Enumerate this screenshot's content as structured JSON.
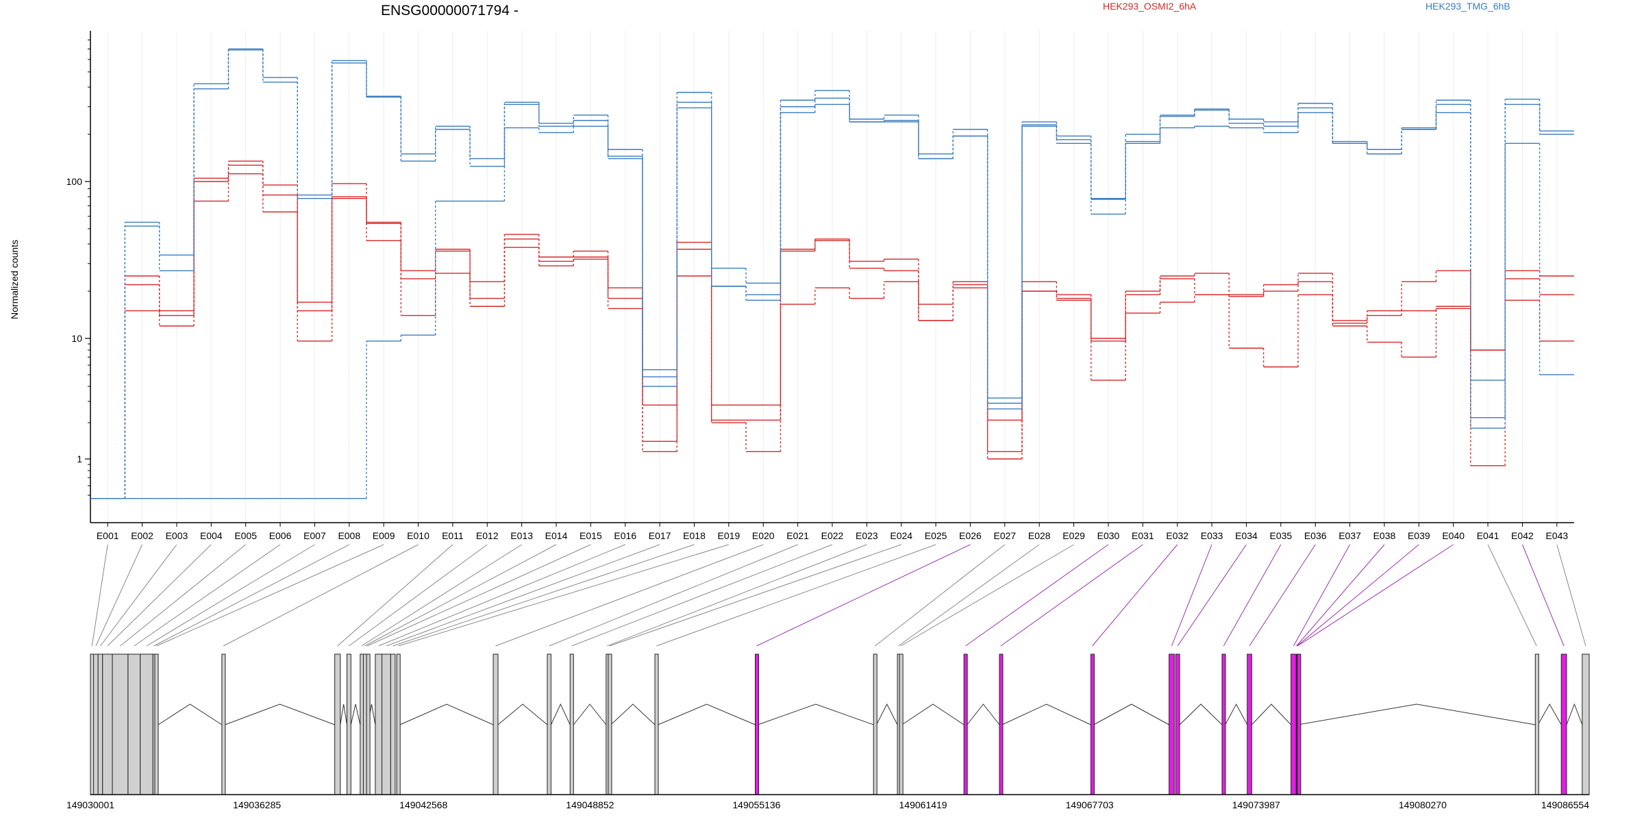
{
  "chart_data": {
    "type": "line",
    "title": "ENSG00000071794 -",
    "ylabel": "Normalized counts",
    "yscale": "log",
    "ylim": [
      0.4,
      900
    ],
    "y_ticks": [
      "1",
      "10",
      "100"
    ],
    "y_tick_values": [
      1,
      10,
      100
    ],
    "categories": [
      "E001",
      "E002",
      "E003",
      "E004",
      "E005",
      "E006",
      "E007",
      "E008",
      "E009",
      "E010",
      "E011",
      "E012",
      "E013",
      "E014",
      "E015",
      "E016",
      "E017",
      "E018",
      "E019",
      "E020",
      "E021",
      "E022",
      "E023",
      "E024",
      "E025",
      "E026",
      "E027",
      "E028",
      "E029",
      "E030",
      "E031",
      "E032",
      "E033",
      "E034",
      "E035",
      "E036",
      "E037",
      "E038",
      "E039",
      "E040",
      "E041",
      "E042",
      "E043"
    ],
    "legend": [
      {
        "label": "HEK293_OSMI2_6hA",
        "color": "#d62728"
      },
      {
        "label": "HEK293_TMG_6hB",
        "color": "#3a7bbf"
      }
    ],
    "series": [
      {
        "group": "HEK293_OSMI2_6hA",
        "color": "#d62728",
        "values": [
          0.47,
          25,
          15,
          105,
          135,
          95,
          17,
          97,
          55,
          27,
          37,
          23,
          46,
          33,
          36,
          21,
          1.4,
          41,
          2.8,
          2.8,
          37,
          43,
          31,
          32,
          16.5,
          23,
          1.15,
          23,
          19,
          10,
          20,
          25,
          26,
          19,
          22,
          26,
          13,
          15,
          23,
          27,
          8,
          27,
          25
        ]
      },
      {
        "group": "HEK293_OSMI2_6hA",
        "color": "#d62728",
        "values": [
          0.47,
          22,
          14,
          100,
          127,
          82,
          15,
          80,
          54,
          24,
          36,
          18,
          43,
          31,
          33,
          18,
          2.8,
          37,
          2.1,
          2.1,
          36,
          42,
          28,
          27,
          13,
          22,
          2.1,
          20,
          18,
          9.5,
          19,
          24,
          19,
          18.5,
          20,
          23,
          12.5,
          14,
          15,
          16,
          8,
          24,
          19
        ]
      },
      {
        "group": "HEK293_OSMI2_6hA",
        "color": "#d62728",
        "values": [
          0.47,
          15,
          12,
          75,
          112,
          64,
          9.5,
          78,
          42,
          14,
          26,
          16,
          38,
          29,
          32,
          15.5,
          1.15,
          25,
          2,
          1.15,
          16.5,
          21,
          18,
          23,
          13,
          21,
          1,
          20,
          17.5,
          4.5,
          14.5,
          17,
          19,
          8.3,
          5.8,
          19,
          12,
          9.3,
          7,
          15.5,
          0.88,
          17.5,
          9.5
        ]
      },
      {
        "group": "HEK293_TMG_6hB",
        "color": "#3a7bbf",
        "values": [
          0.47,
          55,
          34,
          420,
          700,
          460,
          82,
          590,
          350,
          150,
          225,
          140,
          320,
          235,
          265,
          160,
          5.5,
          370,
          28,
          22.5,
          330,
          380,
          250,
          265,
          150,
          215,
          3.2,
          240,
          195,
          78,
          200,
          265,
          290,
          250,
          240,
          315,
          180,
          160,
          220,
          330,
          4.5,
          335,
          210
        ]
      },
      {
        "group": "HEK293_TMG_6hB",
        "color": "#3a7bbf",
        "values": [
          0.47,
          52,
          27,
          390,
          690,
          430,
          78,
          570,
          345,
          135,
          215,
          125,
          310,
          225,
          245,
          145,
          4.8,
          320,
          21.5,
          19,
          300,
          340,
          240,
          245,
          140,
          195,
          2.9,
          230,
          185,
          77,
          180,
          260,
          285,
          235,
          225,
          295,
          175,
          150,
          215,
          310,
          2.2,
          310,
          200
        ]
      },
      {
        "group": "HEK293_TMG_6hB",
        "color": "#3a7bbf",
        "values": [
          0.47,
          0.47,
          0.47,
          0.47,
          0.47,
          0.47,
          0.47,
          0.47,
          9.5,
          10.5,
          75,
          75,
          220,
          205,
          225,
          140,
          4,
          295,
          21.5,
          17.5,
          275,
          310,
          240,
          240,
          140,
          195,
          2.6,
          225,
          175,
          62,
          175,
          220,
          225,
          220,
          205,
          275,
          175,
          150,
          215,
          275,
          1.8,
          175,
          5
        ]
      }
    ]
  },
  "gene_model": {
    "coordinate_ticks": [
      "149030001",
      "149036285",
      "149042568",
      "149048852",
      "149055136",
      "149061419",
      "149067703",
      "149073987",
      "149080270",
      "149086554"
    ],
    "exons": [
      {
        "id": "E001",
        "start": 149030001,
        "end": 149030120,
        "fill": "#d0d0d0"
      },
      {
        "id": "E002",
        "start": 149030120,
        "end": 149030290,
        "fill": "#d0d0d0"
      },
      {
        "id": "E003",
        "start": 149030290,
        "end": 149030460,
        "fill": "#d0d0d0"
      },
      {
        "id": "E004",
        "start": 149030460,
        "end": 149030830,
        "fill": "#d0d0d0"
      },
      {
        "id": "E005",
        "start": 149030830,
        "end": 149031420,
        "fill": "#d0d0d0"
      },
      {
        "id": "E006",
        "start": 149031420,
        "end": 149031880,
        "fill": "#d0d0d0"
      },
      {
        "id": "E007",
        "start": 149031880,
        "end": 149032360,
        "fill": "#d0d0d0"
      },
      {
        "id": "E008",
        "start": 149032360,
        "end": 149032430,
        "fill": "#d0d0d0"
      },
      {
        "id": "E009",
        "start": 149032430,
        "end": 149032560,
        "fill": "#d0d0d0"
      },
      {
        "id": "E010",
        "start": 149034960,
        "end": 149035080,
        "fill": "#d0d0d0"
      },
      {
        "id": "E011",
        "start": 149039220,
        "end": 149039430,
        "fill": "#d0d0d0"
      },
      {
        "id": "E012",
        "start": 149039680,
        "end": 149039830,
        "fill": "#d0d0d0"
      },
      {
        "id": "E013",
        "start": 149040180,
        "end": 149040280,
        "fill": "#d0d0d0"
      },
      {
        "id": "E014",
        "start": 149040300,
        "end": 149040400,
        "fill": "#d0d0d0"
      },
      {
        "id": "E015",
        "start": 149040420,
        "end": 149040470,
        "fill": "#d0d0d0"
      },
      {
        "id": "E016",
        "start": 149040750,
        "end": 149041000,
        "fill": "#d0d0d0"
      },
      {
        "id": "E017",
        "start": 149041000,
        "end": 149041330,
        "fill": "#d0d0d0"
      },
      {
        "id": "E018",
        "start": 149041330,
        "end": 149041500,
        "fill": "#d0d0d0"
      },
      {
        "id": "E019",
        "start": 149041560,
        "end": 149041680,
        "fill": "#d0d0d0"
      },
      {
        "id": "E020",
        "start": 149045200,
        "end": 149045380,
        "fill": "#d0d0d0"
      },
      {
        "id": "E021",
        "start": 149047240,
        "end": 149047380,
        "fill": "#d0d0d0"
      },
      {
        "id": "E022",
        "start": 149048100,
        "end": 149048230,
        "fill": "#d0d0d0"
      },
      {
        "id": "E023",
        "start": 149049460,
        "end": 149049540,
        "fill": "#d0d0d0"
      },
      {
        "id": "E024",
        "start": 149049540,
        "end": 149049640,
        "fill": "#d0d0d0"
      },
      {
        "id": "E025",
        "start": 149051300,
        "end": 149051420,
        "fill": "#d0d0d0"
      },
      {
        "id": "E026",
        "start": 149055086,
        "end": 149055186,
        "fill": "#e020e0"
      },
      {
        "id": "E027",
        "start": 149059550,
        "end": 149059660,
        "fill": "#d0d0d0"
      },
      {
        "id": "E028",
        "start": 149060450,
        "end": 149060530,
        "fill": "#d0d0d0"
      },
      {
        "id": "E029",
        "start": 149060530,
        "end": 149060620,
        "fill": "#d0d0d0"
      },
      {
        "id": "E030",
        "start": 149062960,
        "end": 149063080,
        "fill": "#e020e0"
      },
      {
        "id": "E031",
        "start": 149064300,
        "end": 149064400,
        "fill": "#e020e0"
      },
      {
        "id": "E032",
        "start": 149067750,
        "end": 149067860,
        "fill": "#e020e0"
      },
      {
        "id": "E033",
        "start": 149070700,
        "end": 149070900,
        "fill": "#e020e0"
      },
      {
        "id": "E034",
        "start": 149070950,
        "end": 149071100,
        "fill": "#e020e0"
      },
      {
        "id": "E035",
        "start": 149072700,
        "end": 149072820,
        "fill": "#e020e0"
      },
      {
        "id": "E036",
        "start": 149073650,
        "end": 149073820,
        "fill": "#e020e0"
      },
      {
        "id": "E037",
        "start": 149075300,
        "end": 149075500,
        "fill": "#e020e0"
      },
      {
        "id": "E038",
        "start": 149075500,
        "end": 149075520,
        "fill": "#e020e0"
      },
      {
        "id": "E039",
        "start": 149075520,
        "end": 149075540,
        "fill": "#e020e0"
      },
      {
        "id": "E040",
        "start": 149075540,
        "end": 149075560,
        "fill": "#e020e0"
      },
      {
        "id": "E041",
        "start": 149084520,
        "end": 149084620,
        "fill": "#d0d0d0"
      },
      {
        "id": "E042",
        "start": 149085500,
        "end": 149085700,
        "fill": "#e020e0"
      },
      {
        "id": "E043",
        "start": 149086290,
        "end": 149086554,
        "fill": "#d0d0d0"
      }
    ],
    "gene_range": [
      149030001,
      149086554
    ]
  }
}
